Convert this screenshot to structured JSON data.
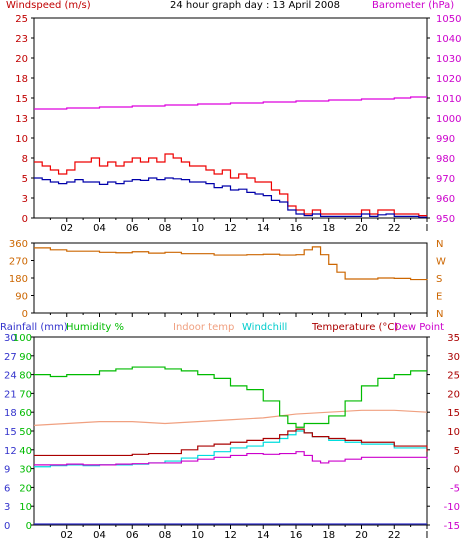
{
  "chart_data": [
    {
      "type": "line",
      "title": "24 hour graph day : 13 April 2008",
      "ylabel_left": "Windspeed (m/s)",
      "ylabel_right": "Barometer (hPa)",
      "x_tick_labels": [
        "02",
        "04",
        "06",
        "08",
        "10",
        "12",
        "14",
        "16",
        "18",
        "20",
        "22"
      ],
      "x_range": [
        0,
        24
      ],
      "ylim_left": [
        0,
        25
      ],
      "ylim_right": [
        950,
        1050
      ],
      "y_ticks_left": [
        "0",
        "3",
        "5",
        "8",
        "10",
        "13",
        "15",
        "18",
        "20",
        "23",
        "25"
      ],
      "y_ticks_right": [
        "950",
        "960",
        "970",
        "980",
        "990",
        "1000",
        "1010",
        "1020",
        "1030",
        "1040",
        "1050"
      ],
      "colors": {
        "gust": "#ee0000",
        "average": "#0000aa",
        "barometer": "#dd00dd",
        "left_axis": "#c00000",
        "right_axis": "#cc00cc"
      },
      "series": [
        {
          "key": "gust",
          "x": [
            0,
            0.5,
            1,
            1.5,
            2,
            2.5,
            3,
            3.5,
            4,
            4.5,
            5,
            5.5,
            6,
            6.5,
            7,
            7.5,
            8,
            8.5,
            9,
            9.5,
            10,
            10.5,
            11,
            11.5,
            12,
            12.5,
            13,
            13.5,
            14,
            14.5,
            15,
            15.5,
            16,
            16.5,
            17,
            17.5,
            18,
            18.5,
            19,
            19.5,
            20,
            20.5,
            21,
            21.5,
            22,
            22.5,
            23,
            23.5,
            24
          ],
          "values": [
            7,
            6.5,
            6,
            5.5,
            6,
            7,
            7,
            7.5,
            6.5,
            7,
            6.5,
            7,
            7.5,
            7,
            7.5,
            7,
            8,
            7.5,
            7,
            6.5,
            6.5,
            6,
            5.5,
            6,
            5,
            5.5,
            5,
            4.5,
            4.5,
            3.5,
            3,
            1.5,
            1,
            0.5,
            1,
            0.5,
            0.5,
            0.5,
            0.5,
            0.5,
            1,
            0.5,
            1,
            1,
            0.5,
            0.5,
            0.5,
            0.3,
            0.3
          ]
        },
        {
          "key": "average",
          "x": [
            0,
            0.5,
            1,
            1.5,
            2,
            2.5,
            3,
            3.5,
            4,
            4.5,
            5,
            5.5,
            6,
            6.5,
            7,
            7.5,
            8,
            8.5,
            9,
            9.5,
            10,
            10.5,
            11,
            11.5,
            12,
            12.5,
            13,
            13.5,
            14,
            14.5,
            15,
            15.5,
            16,
            16.5,
            17,
            17.5,
            18,
            18.5,
            19,
            19.5,
            20,
            20.5,
            21,
            21.5,
            22,
            22.5,
            23,
            23.5,
            24
          ],
          "values": [
            5,
            4.8,
            4.5,
            4.3,
            4.5,
            4.8,
            4.5,
            4.5,
            4.2,
            4.5,
            4.3,
            4.6,
            4.8,
            4.7,
            5,
            4.8,
            5,
            4.9,
            4.8,
            4.5,
            4.5,
            4.3,
            3.8,
            4,
            3.5,
            3.6,
            3.2,
            3,
            2.8,
            2.2,
            2,
            1,
            0.5,
            0.3,
            0.5,
            0.2,
            0.2,
            0.2,
            0.2,
            0.2,
            0.5,
            0.2,
            0.4,
            0.5,
            0.2,
            0.2,
            0.2,
            0.1,
            0.1
          ]
        },
        {
          "key": "barometer",
          "x": [
            0,
            2,
            4,
            6,
            8,
            10,
            12,
            14,
            16,
            18,
            20,
            22,
            23,
            24
          ],
          "values": [
            1004.5,
            1005,
            1005.5,
            1006,
            1006.5,
            1007,
            1007.5,
            1008,
            1008.5,
            1009,
            1009.5,
            1010,
            1010.5,
            1010.5
          ]
        }
      ]
    },
    {
      "type": "line",
      "ylim": [
        0,
        360
      ],
      "y_ticks": [
        "0",
        "90",
        "180",
        "270",
        "360"
      ],
      "compass": [
        "N",
        "W",
        "S",
        "E",
        "N"
      ],
      "x_range": [
        0,
        24
      ],
      "colors": {
        "direction": "#cc6600",
        "compass": "#cc6600"
      },
      "series": [
        {
          "key": "wind_direction",
          "x": [
            0,
            1,
            2,
            3,
            4,
            5,
            6,
            7,
            8,
            9,
            10,
            11,
            12,
            13,
            14,
            15,
            16,
            16.5,
            17,
            17.5,
            18,
            18.5,
            19,
            20,
            21,
            22,
            23,
            24
          ],
          "values": [
            335,
            325,
            318,
            318,
            312,
            310,
            315,
            308,
            312,
            305,
            305,
            298,
            298,
            300,
            302,
            298,
            300,
            325,
            340,
            300,
            250,
            210,
            175,
            175,
            180,
            178,
            172,
            170
          ]
        }
      ]
    },
    {
      "type": "line",
      "legend": [
        "Rainfall (mm)",
        "Humidity %",
        "Indoor temp",
        "Windchill",
        "Temperature (°C)",
        "Dew Point"
      ],
      "x_range": [
        0,
        24
      ],
      "ylim_temp": [
        -15,
        35
      ],
      "y_ticks_rain": [
        "0",
        "3",
        "6",
        "9",
        "12",
        "15",
        "18",
        "21",
        "24",
        "27",
        "30"
      ],
      "y_ticks_humidity": [
        "0",
        "10",
        "20",
        "30",
        "40",
        "50",
        "60",
        "70",
        "80",
        "90",
        "100"
      ],
      "y_ticks_temp": [
        "-15",
        "-10",
        "-5",
        "0",
        "5",
        "10",
        "15",
        "20",
        "25",
        "30",
        "35"
      ],
      "colors": {
        "rainfall": "#3333cc",
        "humidity": "#00bb00",
        "indoor": "#f0a080",
        "windchill": "#00dddd",
        "temperature": "#aa0000",
        "dewpoint": "#cc00cc"
      },
      "series": [
        {
          "key": "humidity_temp_units",
          "x": [
            0,
            1,
            2,
            3,
            4,
            5,
            6,
            7,
            8,
            9,
            10,
            11,
            12,
            13,
            14,
            15,
            15.5,
            16,
            16.5,
            17,
            18,
            19,
            20,
            21,
            22,
            23,
            24
          ],
          "values": [
            25,
            24.5,
            25,
            25,
            26,
            26.5,
            27,
            27,
            26.5,
            26,
            25,
            24,
            22,
            21,
            18,
            14,
            12,
            11,
            12,
            12,
            14,
            18,
            22,
            24,
            25,
            26,
            26
          ]
        },
        {
          "key": "indoor",
          "x": [
            0,
            2,
            4,
            6,
            8,
            10,
            12,
            14,
            16,
            18,
            20,
            22,
            24
          ],
          "values": [
            11.5,
            12,
            12.5,
            12.5,
            12,
            12.5,
            13,
            13.5,
            14.5,
            15,
            15.5,
            15.5,
            15
          ]
        },
        {
          "key": "windchill",
          "x": [
            0,
            1,
            2,
            3,
            4,
            5,
            6,
            7,
            8,
            9,
            10,
            11,
            12,
            13,
            14,
            15,
            15.5,
            16,
            16.5,
            17,
            18,
            19,
            20,
            22,
            24
          ],
          "values": [
            0.5,
            0.8,
            1,
            0.8,
            1,
            1,
            1.2,
            1.5,
            2,
            2.8,
            3.5,
            4.5,
            5.5,
            6,
            7,
            8,
            9,
            10,
            9.5,
            8.5,
            7.5,
            7,
            6.5,
            5.5,
            5
          ]
        },
        {
          "key": "temperature",
          "x": [
            0,
            1,
            2,
            3,
            4,
            5,
            6,
            7,
            8,
            9,
            10,
            11,
            12,
            13,
            14,
            15,
            15.5,
            16,
            16.5,
            17,
            18,
            19,
            20,
            22,
            24
          ],
          "values": [
            3.5,
            3.5,
            3.5,
            3.5,
            3.5,
            3.5,
            3.8,
            4,
            4,
            5,
            6,
            6.5,
            7,
            7.5,
            8,
            9,
            10,
            10.5,
            9.5,
            8.5,
            8,
            7.5,
            7,
            6,
            4.5
          ]
        },
        {
          "key": "dewpoint",
          "x": [
            0,
            1,
            2,
            3,
            4,
            5,
            6,
            7,
            8,
            9,
            10,
            11,
            12,
            13,
            14,
            15,
            16,
            16.5,
            17,
            17.5,
            18,
            19,
            20,
            22,
            23,
            24
          ],
          "values": [
            1,
            1,
            1.2,
            1,
            1,
            1.2,
            1.3,
            1.5,
            1.5,
            2,
            2.5,
            3,
            3.5,
            4,
            3.8,
            4,
            4.5,
            3.5,
            2,
            1.5,
            2,
            2.5,
            3,
            3,
            3,
            2.5
          ]
        },
        {
          "key": "rainfall",
          "x": [
            0,
            24
          ],
          "values": [
            0,
            0
          ]
        }
      ]
    }
  ]
}
